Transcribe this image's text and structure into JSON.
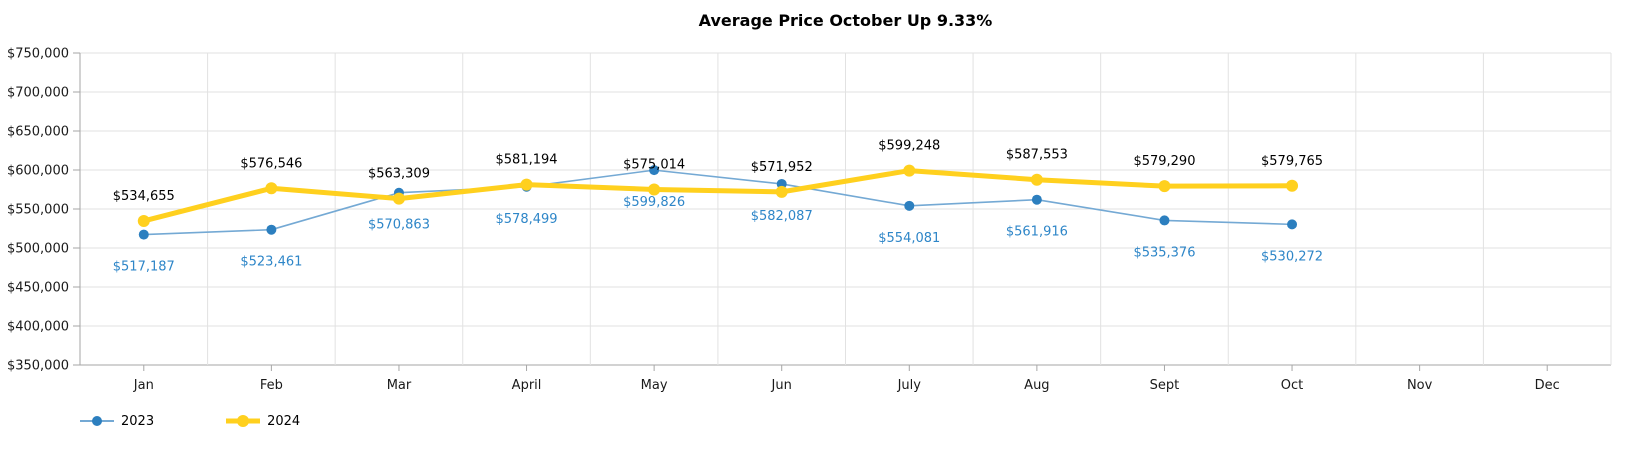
{
  "chart_data": {
    "type": "line",
    "title": "Average Price October Up 9.33%",
    "categories": [
      "Jan",
      "Feb",
      "Mar",
      "April",
      "May",
      "Jun",
      "July",
      "Aug",
      "Sept",
      "Oct",
      "Nov",
      "Dec"
    ],
    "series": [
      {
        "name": "2023",
        "color": "#2C7FBF",
        "line_color": "#74A9D4",
        "line_width": 1.6,
        "marker_radius": 5,
        "label_color": "#2E86C8",
        "label_position": "below",
        "values": [
          517187,
          523461,
          570863,
          578499,
          599826,
          582087,
          554081,
          561916,
          535376,
          530272,
          null,
          null
        ],
        "labels": [
          "$517,187",
          "$523,461",
          "$570,863",
          "$578,499",
          "$599,826",
          "$582,087",
          "$554,081",
          "$561,916",
          "$535,376",
          "$530,272",
          "",
          ""
        ]
      },
      {
        "name": "2024",
        "color": "#FFD01E",
        "line_color": "#FFD01E",
        "line_width": 5,
        "marker_radius": 6,
        "label_color": "#000000",
        "label_position": "above",
        "values": [
          534655,
          576546,
          563309,
          581194,
          575014,
          571952,
          599248,
          587553,
          579290,
          579765,
          null,
          null
        ],
        "labels": [
          "$534,655",
          "$576,546",
          "$563,309",
          "$581,194",
          "$575,014",
          "$571,952",
          "$599,248",
          "$587,553",
          "$579,290",
          "$579,765",
          "",
          ""
        ]
      }
    ],
    "y_axis": {
      "min": 350000,
      "max": 750000,
      "tick_step": 50000,
      "tick_labels": [
        "$750,000",
        "$700,000",
        "$650,000",
        "$600,000",
        "$550,000",
        "$500,000",
        "$450,000",
        "$400,000",
        "$350,000"
      ]
    },
    "grid": true,
    "legend_position": "bottom-left",
    "legend": [
      {
        "label": "2023",
        "color": "#2C7FBF",
        "line_color": "#74A9D4",
        "line_width": 2,
        "marker_radius": 5
      },
      {
        "label": "2024",
        "color": "#FFD01E",
        "line_color": "#FFD01E",
        "line_width": 5,
        "marker_radius": 6
      }
    ],
    "axis_colors": {
      "axis_line": "#a6a6a6",
      "gridline": "#e2e2e2",
      "tick_label": "#1a1a1a"
    }
  }
}
